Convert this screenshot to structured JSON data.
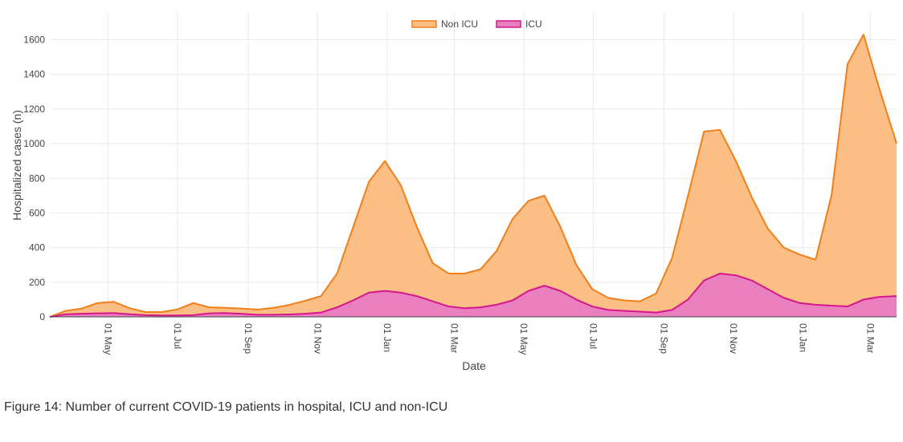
{
  "caption": "Figure 14: Number of current COVID-19 patients in hospital, ICU and non-ICU",
  "chart_data": {
    "type": "area",
    "stacked": true,
    "xlabel": "Date",
    "ylabel": "Hospitalized cases (n)",
    "x_range": [
      "2020-03-11",
      "2022-03-24"
    ],
    "ylim": [
      0,
      1760
    ],
    "y_ticks": [
      0,
      200,
      400,
      600,
      800,
      1000,
      1200,
      1400,
      1600
    ],
    "x_ticks": [
      {
        "date": "2020-05-01",
        "label": "01 May"
      },
      {
        "date": "2020-07-01",
        "label": "01 Jul"
      },
      {
        "date": "2020-09-01",
        "label": "01 Sep"
      },
      {
        "date": "2020-11-01",
        "label": "01 Nov"
      },
      {
        "date": "2021-01-01",
        "label": "01 Jan"
      },
      {
        "date": "2021-03-01",
        "label": "01 Mar"
      },
      {
        "date": "2021-05-01",
        "label": "01 May"
      },
      {
        "date": "2021-07-01",
        "label": "01 Jul"
      },
      {
        "date": "2021-09-01",
        "label": "01 Sep"
      },
      {
        "date": "2021-11-01",
        "label": "01 Nov"
      },
      {
        "date": "2022-01-01",
        "label": "01 Jan"
      },
      {
        "date": "2022-03-01",
        "label": "01 Mar"
      }
    ],
    "grid": true,
    "legend_position": "top-center",
    "dates": [
      "2020-03-11",
      "2020-03-25",
      "2020-04-08",
      "2020-04-22",
      "2020-05-06",
      "2020-05-20",
      "2020-06-03",
      "2020-06-17",
      "2020-07-01",
      "2020-07-15",
      "2020-07-29",
      "2020-08-12",
      "2020-08-26",
      "2020-09-09",
      "2020-09-23",
      "2020-10-07",
      "2020-10-21",
      "2020-11-04",
      "2020-11-18",
      "2020-12-02",
      "2020-12-16",
      "2020-12-30",
      "2021-01-13",
      "2021-01-27",
      "2021-02-10",
      "2021-02-24",
      "2021-03-10",
      "2021-03-24",
      "2021-04-07",
      "2021-04-21",
      "2021-05-05",
      "2021-05-19",
      "2021-06-02",
      "2021-06-16",
      "2021-06-30",
      "2021-07-14",
      "2021-07-28",
      "2021-08-11",
      "2021-08-25",
      "2021-09-08",
      "2021-09-22",
      "2021-10-06",
      "2021-10-20",
      "2021-11-03",
      "2021-11-17",
      "2021-12-01",
      "2021-12-15",
      "2021-12-29",
      "2022-01-12",
      "2022-01-26",
      "2022-02-09",
      "2022-02-23",
      "2022-03-09",
      "2022-03-24"
    ],
    "series": [
      {
        "name": "ICU",
        "color": "#d6168c",
        "fill": "#e97fbe",
        "values": [
          0,
          15,
          18,
          20,
          22,
          15,
          10,
          8,
          8,
          10,
          20,
          22,
          18,
          12,
          12,
          14,
          18,
          25,
          55,
          95,
          140,
          150,
          140,
          120,
          90,
          60,
          50,
          55,
          70,
          95,
          150,
          180,
          150,
          100,
          60,
          40,
          35,
          30,
          25,
          40,
          100,
          210,
          250,
          240,
          210,
          160,
          110,
          80,
          70,
          65,
          60,
          100,
          115,
          120
        ]
      },
      {
        "name": "Non ICU",
        "color": "#f07f1a",
        "fill": "#fbbf86",
        "values": [
          0,
          20,
          30,
          60,
          65,
          35,
          18,
          20,
          35,
          70,
          35,
          30,
          30,
          30,
          40,
          55,
          75,
          95,
          195,
          420,
          640,
          750,
          620,
          400,
          220,
          190,
          200,
          220,
          310,
          470,
          520,
          520,
          370,
          200,
          100,
          70,
          60,
          60,
          110,
          300,
          600,
          860,
          830,
          660,
          480,
          350,
          290,
          280,
          260,
          640,
          1400,
          1530,
          1200,
          880
        ]
      }
    ]
  }
}
